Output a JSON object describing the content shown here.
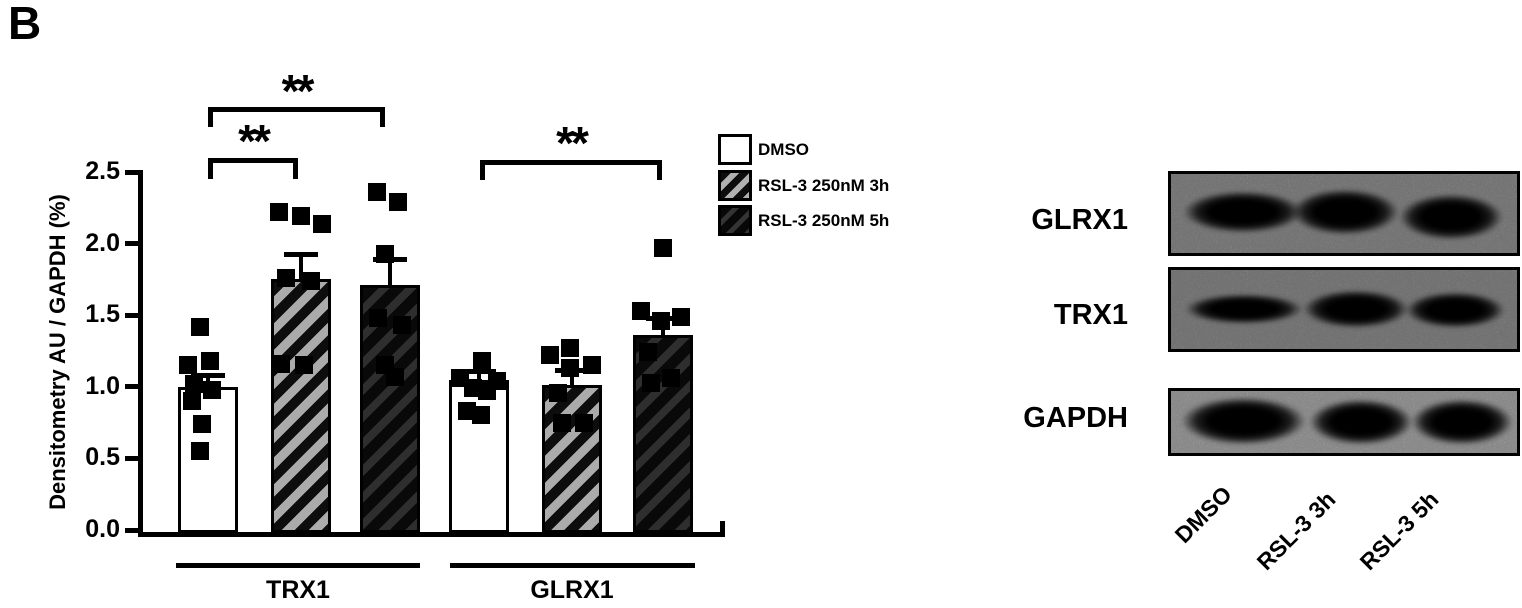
{
  "panel_label": "B",
  "chart": {
    "y_axis": {
      "label": "Densitometry AU / GAPDH (%)",
      "ticks": [
        "2.5",
        "2.0",
        "1.5",
        "1.0",
        "0.5",
        "0.0"
      ]
    },
    "group_labels": [
      "TRX1",
      "GLRX1"
    ],
    "legend": {
      "items": [
        {
          "label": "DMSO",
          "pattern": "white"
        },
        {
          "label": "RSL-3 250nM 3h",
          "pattern": "gray-hatched"
        },
        {
          "label": "RSL-3 250nM 5h",
          "pattern": "dark-hatched"
        }
      ]
    }
  },
  "chart_data": {
    "type": "bar",
    "title": "",
    "ylabel": "Densitometry AU / GAPDH (%)",
    "ylim": [
      0,
      2.5
    ],
    "ytick_step": 0.5,
    "grid": false,
    "legend_position": "right-top",
    "groups": [
      "TRX1",
      "GLRX1"
    ],
    "conditions": [
      "DMSO",
      "RSL-3 250nM 3h",
      "RSL-3 250nM 5h"
    ],
    "bars": [
      {
        "group": "TRX1",
        "condition": "DMSO",
        "mean": 1.0,
        "sem": 0.08,
        "points": [
          1.42,
          1.18,
          1.15,
          1.02,
          0.98,
          0.9,
          0.74,
          0.55
        ]
      },
      {
        "group": "TRX1",
        "condition": "RSL-3 250nM 3h",
        "mean": 1.75,
        "sem": 0.18,
        "points": [
          2.22,
          2.19,
          2.14,
          1.76,
          1.74,
          1.16,
          1.15
        ]
      },
      {
        "group": "TRX1",
        "condition": "RSL-3 250nM 5h",
        "mean": 1.71,
        "sem": 0.18,
        "points": [
          2.36,
          2.29,
          1.93,
          1.48,
          1.43,
          1.15,
          1.07
        ]
      },
      {
        "group": "GLRX1",
        "condition": "DMSO",
        "mean": 1.05,
        "sem": 0.06,
        "points": [
          1.18,
          1.06,
          1.04,
          0.99,
          0.97,
          0.83,
          0.8
        ]
      },
      {
        "group": "GLRX1",
        "condition": "RSL-3 250nM 3h",
        "mean": 1.01,
        "sem": 0.11,
        "points": [
          1.27,
          1.22,
          1.15,
          1.13,
          0.96,
          0.75,
          0.75
        ]
      },
      {
        "group": "GLRX1",
        "condition": "RSL-3 250nM 5h",
        "mean": 1.36,
        "sem": 0.12,
        "points": [
          1.97,
          1.53,
          1.49,
          1.46,
          1.24,
          1.06,
          1.03
        ]
      }
    ],
    "significance_brackets": [
      {
        "from_bar": 0,
        "to_bar": 1,
        "label": "**"
      },
      {
        "from_bar": 0,
        "to_bar": 2,
        "label": "**"
      },
      {
        "from_bar": 3,
        "to_bar": 5,
        "label": "**"
      }
    ]
  },
  "blot_panel": {
    "rows": [
      {
        "label": "GLRX1"
      },
      {
        "label": "TRX1"
      },
      {
        "label": "GAPDH"
      }
    ],
    "lane_labels": [
      "DMSO",
      "RSL-3 3h",
      "RSL-3 5h"
    ]
  },
  "colors": {
    "ink": "#000000",
    "bar_white": "#ffffff",
    "bar_hatch_base": "#ababab",
    "bar_dark_base": "#2e2e2e",
    "blot_bg_light": "#c6c6c6",
    "blot_bg_gray": "#a8a8a8"
  }
}
